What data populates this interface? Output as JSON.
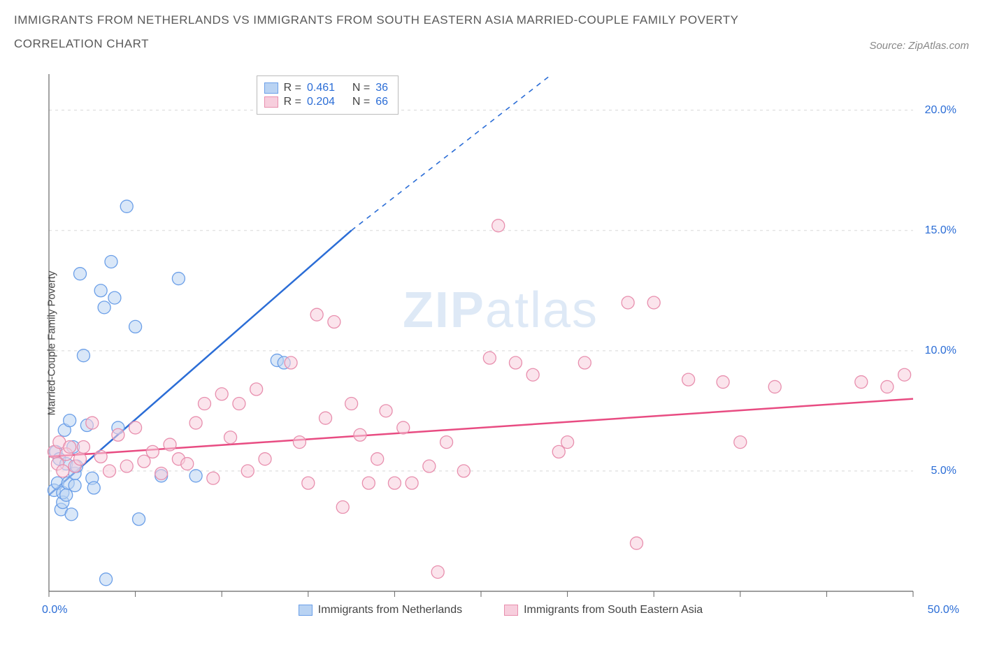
{
  "title": "IMMIGRANTS FROM NETHERLANDS VS IMMIGRANTS FROM SOUTH EASTERN ASIA MARRIED-COUPLE FAMILY POVERTY CORRELATION CHART",
  "source_label": "Source: ZipAtlas.com",
  "y_axis_label": "Married-Couple Family Poverty",
  "watermark": {
    "bold": "ZIP",
    "light": "atlas"
  },
  "chart": {
    "type": "scatter",
    "background_color": "#ffffff",
    "grid_color": "#d8d8d8",
    "axis_color": "#666666",
    "x_range": [
      0,
      50
    ],
    "y_range": [
      0,
      21.5
    ],
    "x_extent_labels": [
      "0.0%",
      "50.0%"
    ],
    "x_ticks": [
      0,
      5,
      10,
      15,
      20,
      25,
      30,
      35,
      40,
      45,
      50
    ],
    "y_ticks": [
      {
        "v": 5,
        "label": "5.0%"
      },
      {
        "v": 10,
        "label": "10.0%"
      },
      {
        "v": 15,
        "label": "15.0%"
      },
      {
        "v": 20,
        "label": "20.0%"
      }
    ],
    "series": [
      {
        "name": "Immigrants from Netherlands",
        "color_stroke": "#6b9fe8",
        "color_fill": "#b9d3f3",
        "color_fill_opacity": 0.55,
        "line_color": "#2b6dd6",
        "marker_radius": 9,
        "stats": {
          "R": "0.461",
          "N": "36"
        },
        "regression": {
          "x1": 0,
          "y1": 4.0,
          "x2": 17.5,
          "y2": 15.0,
          "dashed_extend_to_x": 30,
          "dashed_extend_to_y": 22.0
        },
        "points": [
          [
            0.3,
            4.2
          ],
          [
            0.4,
            5.8
          ],
          [
            0.5,
            4.5
          ],
          [
            0.6,
            5.5
          ],
          [
            0.7,
            3.4
          ],
          [
            0.8,
            3.7
          ],
          [
            0.8,
            4.1
          ],
          [
            0.9,
            6.7
          ],
          [
            1.0,
            4.0
          ],
          [
            1.0,
            5.3
          ],
          [
            1.1,
            4.5
          ],
          [
            1.2,
            7.1
          ],
          [
            1.3,
            3.2
          ],
          [
            1.4,
            6.0
          ],
          [
            1.5,
            4.4
          ],
          [
            1.5,
            4.9
          ],
          [
            1.6,
            5.2
          ],
          [
            1.8,
            13.2
          ],
          [
            2.0,
            9.8
          ],
          [
            2.2,
            6.9
          ],
          [
            2.5,
            4.7
          ],
          [
            2.6,
            4.3
          ],
          [
            3.0,
            12.5
          ],
          [
            3.2,
            11.8
          ],
          [
            3.3,
            0.5
          ],
          [
            3.6,
            13.7
          ],
          [
            3.8,
            12.2
          ],
          [
            4.0,
            6.8
          ],
          [
            4.5,
            16.0
          ],
          [
            5.0,
            11.0
          ],
          [
            5.2,
            3.0
          ],
          [
            6.5,
            4.8
          ],
          [
            7.5,
            13.0
          ],
          [
            8.5,
            4.8
          ],
          [
            13.2,
            9.6
          ],
          [
            13.6,
            9.5
          ]
        ]
      },
      {
        "name": "Immigrants from South Eastern Asia",
        "color_stroke": "#e88fae",
        "color_fill": "#f7cedd",
        "color_fill_opacity": 0.55,
        "line_color": "#e84c82",
        "marker_radius": 9,
        "stats": {
          "R": "0.204",
          "N": "66"
        },
        "regression": {
          "x1": 0,
          "y1": 5.6,
          "x2": 50,
          "y2": 8.0
        },
        "points": [
          [
            0.3,
            5.8
          ],
          [
            0.5,
            5.3
          ],
          [
            0.6,
            6.2
          ],
          [
            0.8,
            5.0
          ],
          [
            1.0,
            5.7
          ],
          [
            1.2,
            6.0
          ],
          [
            1.5,
            5.2
          ],
          [
            1.8,
            5.5
          ],
          [
            2.0,
            6.0
          ],
          [
            2.5,
            7.0
          ],
          [
            3.0,
            5.6
          ],
          [
            3.5,
            5.0
          ],
          [
            4.0,
            6.5
          ],
          [
            4.5,
            5.2
          ],
          [
            5.0,
            6.8
          ],
          [
            5.5,
            5.4
          ],
          [
            6.0,
            5.8
          ],
          [
            6.5,
            4.9
          ],
          [
            7.0,
            6.1
          ],
          [
            7.5,
            5.5
          ],
          [
            8.0,
            5.3
          ],
          [
            8.5,
            7.0
          ],
          [
            9.0,
            7.8
          ],
          [
            9.5,
            4.7
          ],
          [
            10.0,
            8.2
          ],
          [
            10.5,
            6.4
          ],
          [
            11.0,
            7.8
          ],
          [
            11.5,
            5.0
          ],
          [
            12.0,
            8.4
          ],
          [
            12.5,
            5.5
          ],
          [
            14.0,
            9.5
          ],
          [
            14.5,
            6.2
          ],
          [
            15.0,
            4.5
          ],
          [
            15.5,
            11.5
          ],
          [
            16.0,
            7.2
          ],
          [
            16.5,
            11.2
          ],
          [
            17.0,
            3.5
          ],
          [
            17.5,
            7.8
          ],
          [
            18.0,
            6.5
          ],
          [
            18.5,
            4.5
          ],
          [
            19.0,
            5.5
          ],
          [
            19.5,
            7.5
          ],
          [
            20.0,
            4.5
          ],
          [
            20.5,
            6.8
          ],
          [
            21.0,
            4.5
          ],
          [
            22.0,
            5.2
          ],
          [
            22.5,
            0.8
          ],
          [
            23.0,
            6.2
          ],
          [
            24.0,
            5.0
          ],
          [
            25.5,
            9.7
          ],
          [
            26.0,
            15.2
          ],
          [
            27.0,
            9.5
          ],
          [
            28.0,
            9.0
          ],
          [
            29.5,
            5.8
          ],
          [
            30.0,
            6.2
          ],
          [
            31.0,
            9.5
          ],
          [
            33.5,
            12.0
          ],
          [
            34.0,
            2.0
          ],
          [
            35.0,
            12.0
          ],
          [
            37.0,
            8.8
          ],
          [
            39.0,
            8.7
          ],
          [
            40.0,
            6.2
          ],
          [
            42.0,
            8.5
          ],
          [
            47.0,
            8.7
          ],
          [
            49.5,
            9.0
          ],
          [
            48.5,
            8.5
          ]
        ]
      }
    ],
    "bottom_legend": [
      {
        "label": "Immigrants from Netherlands",
        "fill": "#b9d3f3",
        "stroke": "#6b9fe8"
      },
      {
        "label": "Immigrants from South Eastern Asia",
        "fill": "#f7cedd",
        "stroke": "#e88fae"
      }
    ]
  }
}
